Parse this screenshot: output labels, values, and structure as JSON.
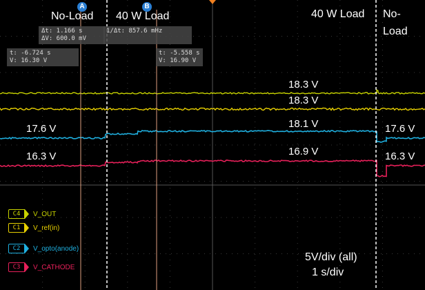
{
  "annotations": {
    "no_load_left": "No-Load",
    "load_40w_center": "40 W Load",
    "load_40w_right": "40 W Load",
    "no_load_right_line1": "No-",
    "no_load_right_line2": "Load",
    "scale_line1": "5V/div (all)",
    "scale_line2": "1 s/div"
  },
  "cursors": {
    "a_label": "A",
    "b_label": "B",
    "delta_t": "Δt: 1.166 s",
    "inv_delta_t": "1/Δt:   857.6 mHz",
    "delta_v": "ΔV: 600.0 mV",
    "a_time": "t:   -6.724 s",
    "a_volt": "V:  16.30 V",
    "b_time": "t:   -5.558 s",
    "b_volt": "V:  16.90 V"
  },
  "waveform_labels": {
    "vout_40w": "18.3 V",
    "vref_40w": "18.3 V",
    "opto_noload_left": "17.6 V",
    "opto_40w": "18.1 V",
    "opto_noload_right": "17.6 V",
    "cathode_noload_left": "16.3 V",
    "cathode_40w": "16.9 V",
    "cathode_noload_right": "16.3 V"
  },
  "legend": [
    {
      "tag": "C4",
      "name": "V_OUT",
      "color": "#c8d400"
    },
    {
      "tag": "C1",
      "name": "V_ref(in)",
      "color": "#e8d000"
    },
    {
      "tag": "C2",
      "name": "V_opto(anode)",
      "color": "#1fb0e0"
    },
    {
      "tag": "C3",
      "name": "V_CATHODE",
      "color": "#e8205a"
    }
  ],
  "colors": {
    "vout": "#c8d400",
    "vref": "#e8d000",
    "opto": "#1fb0e0",
    "cathode": "#e8205a",
    "cursor": "#e0a080",
    "grid": "#3a3a3a"
  }
}
